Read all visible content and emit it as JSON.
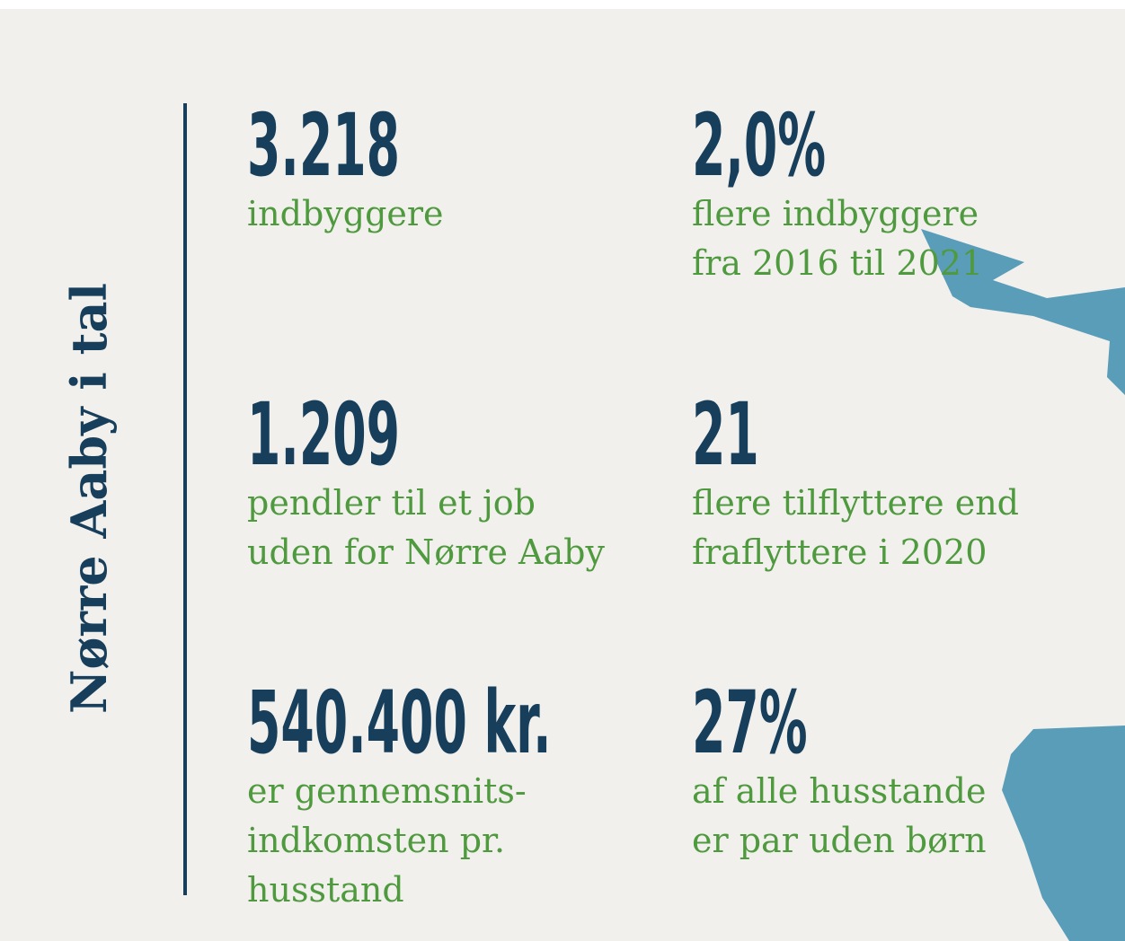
{
  "title": "Nørre Aaby i tal",
  "stats": [
    {
      "value": "3.218",
      "lines": [
        "indbyggere"
      ]
    },
    {
      "value": "2,0%",
      "lines": [
        "flere indbyggere",
        "fra 2016 til 2021"
      ]
    },
    {
      "value": "1.209",
      "lines": [
        "pendler til et job",
        "uden for Nørre Aaby"
      ]
    },
    {
      "value": "21",
      "lines": [
        "flere tilflyttere end",
        "fraflyttere i 2020"
      ]
    },
    {
      "value": "540.400 kr.",
      "lines": [
        "er gennemsnits-",
        "indkomsten pr.",
        "husstand"
      ]
    },
    {
      "value": "27%",
      "lines": [
        "af alle husstande",
        "er par uden børn"
      ]
    }
  ]
}
